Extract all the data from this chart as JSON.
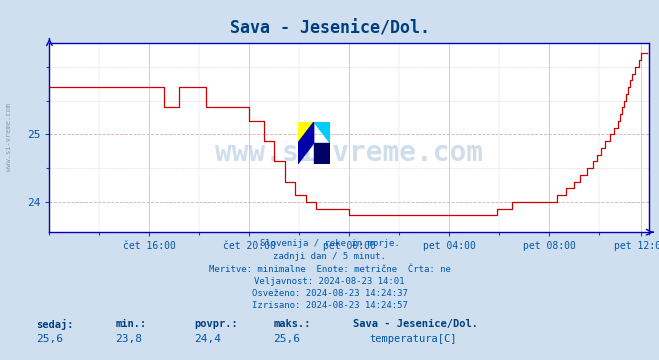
{
  "title": "Sava - Jesenice/Dol.",
  "title_color": "#003f7f",
  "bg_color": "#d0dff0",
  "plot_bg_color": "#ffffff",
  "line_color": "#cc0000",
  "axis_color": "#0000bb",
  "tick_label_color": "#0055aa",
  "watermark_text": "www.si-vreme.com",
  "sidebar_text": "www.si-vreme.com",
  "footer_lines": [
    "Slovenija / reke in morje.",
    "zadnji dan / 5 minut.",
    "Meritve: minimalne  Enote: metrične  Črta: ne",
    "Veljavnost: 2024-08-23 14:01",
    "Osveženo: 2024-08-23 14:24:37",
    "Izrisano: 2024-08-23 14:24:57"
  ],
  "legend_label": "temperatura[C]",
  "legend_color": "#cc0000",
  "stats_sedaj": "25,6",
  "stats_min": "23,8",
  "stats_povpr": "24,4",
  "stats_maks": "25,6",
  "stats_station": "Sava - Jesenice/Dol.",
  "ylim_min": 23.55,
  "ylim_max": 26.35,
  "yticks": [
    24.0,
    25.0
  ],
  "num_points": 288,
  "x_tick_labels": [
    "čet 16:00",
    "čet 20:00",
    "pet 00:00",
    "pet 04:00",
    "pet 08:00",
    "pet 12:00"
  ],
  "x_tick_positions": [
    48,
    96,
    144,
    192,
    240,
    284
  ]
}
